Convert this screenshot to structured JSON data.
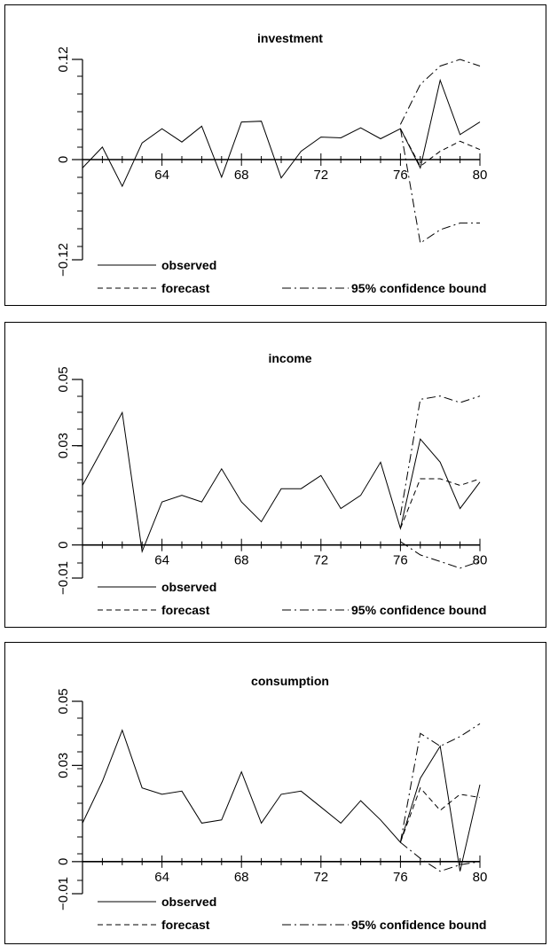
{
  "chart_data": [
    {
      "type": "line",
      "title": "investment",
      "xlim": [
        60,
        80
      ],
      "ylim": [
        -0.12,
        0.12
      ],
      "yticks": [
        0.12,
        0,
        -0.12
      ],
      "ytick_labels": [
        "0.12",
        "0",
        "−0.12"
      ],
      "xticks": [
        64,
        68,
        72,
        76,
        80
      ],
      "xtick_labels": [
        "64",
        "68",
        "72",
        "76",
        "80"
      ],
      "legend": {
        "observed": "observed",
        "forecast": "forecast",
        "bound": "95% confidence bound"
      },
      "series": [
        {
          "name": "observed",
          "style": "solid",
          "x": [
            60,
            61,
            62,
            63,
            64,
            65,
            66,
            67,
            68,
            69,
            70,
            71,
            72,
            73,
            74,
            75,
            76,
            77,
            78,
            79,
            80
          ],
          "y": [
            -0.01,
            0.015,
            -0.032,
            0.02,
            0.037,
            0.021,
            0.04,
            -0.021,
            0.045,
            0.046,
            -0.022,
            0.01,
            0.027,
            0.026,
            0.038,
            0.025,
            0.037,
            -0.01,
            0.095,
            0.03,
            0.045
          ]
        },
        {
          "name": "forecast",
          "style": "dashed",
          "x": [
            76,
            77,
            78,
            79,
            80
          ],
          "y": [
            0.037,
            -0.008,
            0.01,
            0.022,
            0.012
          ]
        },
        {
          "name": "95% confidence bound",
          "style": "dashdot",
          "x": [
            76,
            77,
            78,
            79,
            80
          ],
          "y": [
            0.042,
            0.09,
            0.112,
            0.12,
            0.112
          ]
        },
        {
          "name": "95% confidence bound",
          "style": "dashdot",
          "x": [
            76,
            77,
            78,
            79,
            80
          ],
          "y": [
            0.037,
            -0.1,
            -0.084,
            -0.076,
            -0.076
          ]
        }
      ]
    },
    {
      "type": "line",
      "title": "income",
      "xlim": [
        60,
        80
      ],
      "ylim": [
        -0.01,
        0.05
      ],
      "yticks": [
        0.05,
        0.03,
        0,
        -0.01
      ],
      "ytick_labels": [
        "0.05",
        "0.03",
        "0",
        "−0.01"
      ],
      "xticks": [
        64,
        68,
        72,
        76,
        80
      ],
      "xtick_labels": [
        "64",
        "68",
        "72",
        "76",
        "80"
      ],
      "legend": {
        "observed": "observed",
        "forecast": "forecast",
        "bound": "95% confidence bound"
      },
      "series": [
        {
          "name": "observed",
          "style": "solid",
          "x": [
            60,
            61,
            62,
            63,
            64,
            65,
            66,
            67,
            68,
            69,
            70,
            71,
            72,
            73,
            74,
            75,
            76,
            77,
            78,
            79,
            80
          ],
          "y": [
            0.018,
            0.029,
            0.04,
            -0.002,
            0.013,
            0.015,
            0.013,
            0.023,
            0.013,
            0.007,
            0.017,
            0.017,
            0.021,
            0.011,
            0.015,
            0.025,
            0.005,
            0.032,
            0.025,
            0.011,
            0.019
          ]
        },
        {
          "name": "forecast",
          "style": "dashed",
          "x": [
            76,
            77,
            78,
            79,
            80
          ],
          "y": [
            0.005,
            0.02,
            0.02,
            0.018,
            0.02
          ]
        },
        {
          "name": "95% confidence bound",
          "style": "dashdot",
          "x": [
            76,
            77,
            78,
            79,
            80
          ],
          "y": [
            0.009,
            0.044,
            0.045,
            0.043,
            0.045
          ]
        },
        {
          "name": "95% confidence bound",
          "style": "dashdot",
          "x": [
            76,
            77,
            78,
            79,
            80
          ],
          "y": [
            0.001,
            -0.003,
            -0.005,
            -0.007,
            -0.005
          ]
        }
      ]
    },
    {
      "type": "line",
      "title": "consumption",
      "xlim": [
        60,
        80
      ],
      "ylim": [
        -0.01,
        0.05
      ],
      "yticks": [
        0.05,
        0.03,
        0,
        -0.01
      ],
      "ytick_labels": [
        "0.05",
        "0.03",
        "0",
        "−0.01"
      ],
      "xticks": [
        64,
        68,
        72,
        76,
        80
      ],
      "xtick_labels": [
        "64",
        "68",
        "72",
        "76",
        "80"
      ],
      "legend": {
        "observed": "observed",
        "forecast": "forecast",
        "bound": "95% confidence bound"
      },
      "series": [
        {
          "name": "observed",
          "style": "solid",
          "x": [
            60,
            61,
            62,
            63,
            64,
            65,
            66,
            67,
            68,
            69,
            70,
            71,
            72,
            73,
            74,
            75,
            76,
            77,
            78,
            79,
            80
          ],
          "y": [
            0.012,
            0.025,
            0.041,
            0.023,
            0.021,
            0.022,
            0.012,
            0.013,
            0.028,
            0.012,
            0.021,
            0.022,
            0.017,
            0.012,
            0.019,
            0.013,
            0.006,
            0.026,
            0.036,
            -0.003,
            0.024
          ]
        },
        {
          "name": "forecast",
          "style": "dashed",
          "x": [
            76,
            77,
            78,
            79,
            80
          ],
          "y": [
            0.006,
            0.023,
            0.016,
            0.021,
            0.02
          ]
        },
        {
          "name": "95% confidence bound",
          "style": "dashdot",
          "x": [
            76,
            77,
            78,
            79,
            80
          ],
          "y": [
            0.006,
            0.04,
            0.036,
            0.039,
            0.043
          ]
        },
        {
          "name": "95% confidence bound",
          "style": "dashdot",
          "x": [
            76,
            77,
            78,
            79,
            80
          ],
          "y": [
            0.006,
            0.001,
            -0.003,
            -0.001,
            0.0
          ]
        }
      ]
    }
  ]
}
